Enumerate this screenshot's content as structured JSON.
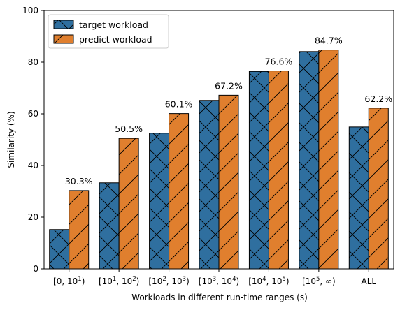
{
  "chart_data": {
    "type": "bar",
    "title": "",
    "xlabel": "Workloads in different run-time ranges (s)",
    "ylabel": "Similarity (%)",
    "ylim": [
      0,
      100
    ],
    "yticks": [
      0,
      20,
      40,
      60,
      80,
      100
    ],
    "grid": false,
    "legend_position": "top-left",
    "categories": [
      {
        "base": "[0, 10",
        "sup": "1",
        "tail": ")"
      },
      {
        "base": "[10",
        "sup": "1",
        "mid": ", 10",
        "sup2": "2",
        "tail": ")"
      },
      {
        "base": "[10",
        "sup": "2",
        "mid": ", 10",
        "sup2": "3",
        "tail": ")"
      },
      {
        "base": "[10",
        "sup": "3",
        "mid": ", 10",
        "sup2": "4",
        "tail": ")"
      },
      {
        "base": "[10",
        "sup": "4",
        "mid": ", 10",
        "sup2": "5",
        "tail": ")"
      },
      {
        "base": "[10",
        "sup": "5",
        "mid": ", ∞",
        "tail": ")"
      },
      {
        "base": "ALL"
      }
    ],
    "series": [
      {
        "name": "target workload",
        "color": "#2f6f9f",
        "hatch": "cross",
        "values": [
          15.2,
          33.3,
          52.5,
          65.2,
          76.4,
          84.1,
          54.9
        ]
      },
      {
        "name": "predict workload",
        "color": "#e07f2e",
        "hatch": "diagonal",
        "values": [
          30.3,
          50.5,
          60.1,
          67.2,
          76.6,
          84.7,
          62.2
        ]
      }
    ],
    "data_labels": [
      "30.3%",
      "50.5%",
      "60.1%",
      "67.2%",
      "76.6%",
      "84.7%",
      "62.2%"
    ]
  }
}
